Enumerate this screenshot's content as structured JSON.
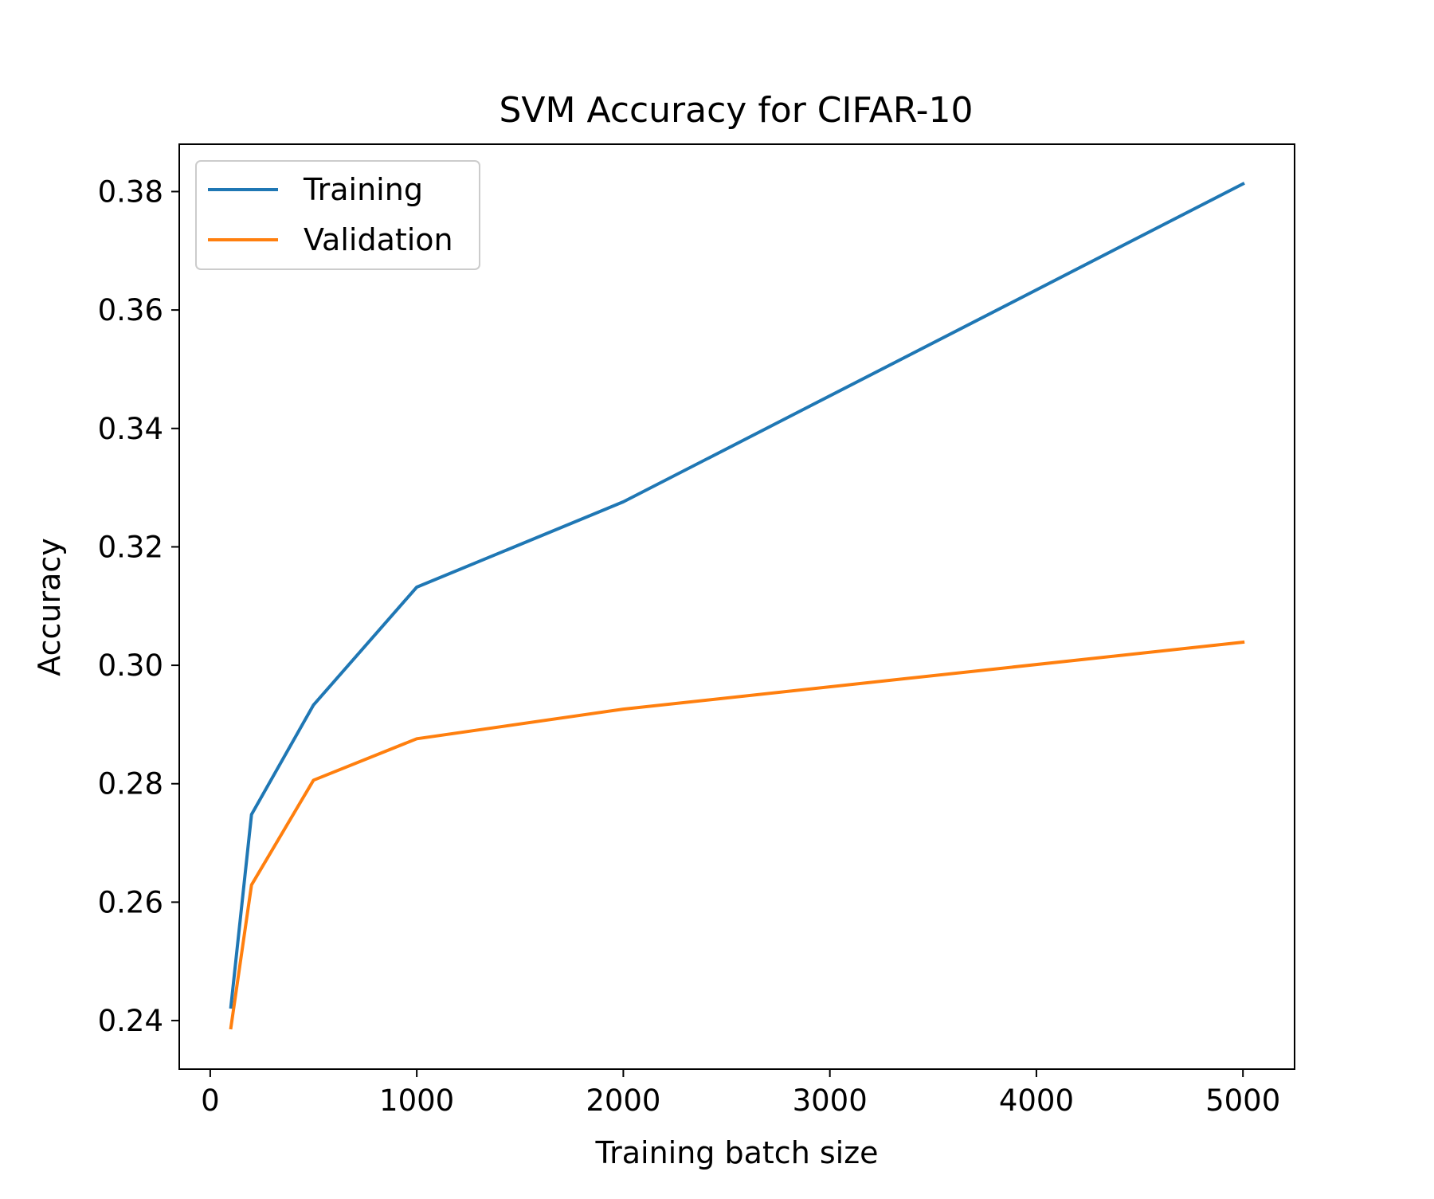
{
  "chart_data": {
    "type": "line",
    "title": "SVM Accuracy for CIFAR-10",
    "xlabel": "Training batch size",
    "ylabel": "Accuracy",
    "xlim": [
      -150,
      5250
    ],
    "ylim": [
      0.2318,
      0.388
    ],
    "x_ticks": [
      0,
      1000,
      2000,
      3000,
      4000,
      5000
    ],
    "x_tick_labels": [
      "0",
      "1000",
      "2000",
      "3000",
      "4000",
      "5000"
    ],
    "y_ticks": [
      0.24,
      0.26,
      0.28,
      0.3,
      0.32,
      0.34,
      0.36,
      0.38
    ],
    "y_tick_labels": [
      "0.24",
      "0.26",
      "0.28",
      "0.30",
      "0.32",
      "0.34",
      "0.36",
      "0.38"
    ],
    "grid": false,
    "legend_position": "upper-left",
    "x": [
      100,
      200,
      500,
      1000,
      2000,
      5000
    ],
    "series": [
      {
        "name": "Training",
        "color": "#1f77b4",
        "values": [
          0.2423,
          0.2748,
          0.2933,
          0.3132,
          0.3276,
          0.3813
        ]
      },
      {
        "name": "Validation",
        "color": "#ff7f0e",
        "values": [
          0.2388,
          0.2629,
          0.2806,
          0.2876,
          0.2926,
          0.3039
        ]
      }
    ]
  }
}
